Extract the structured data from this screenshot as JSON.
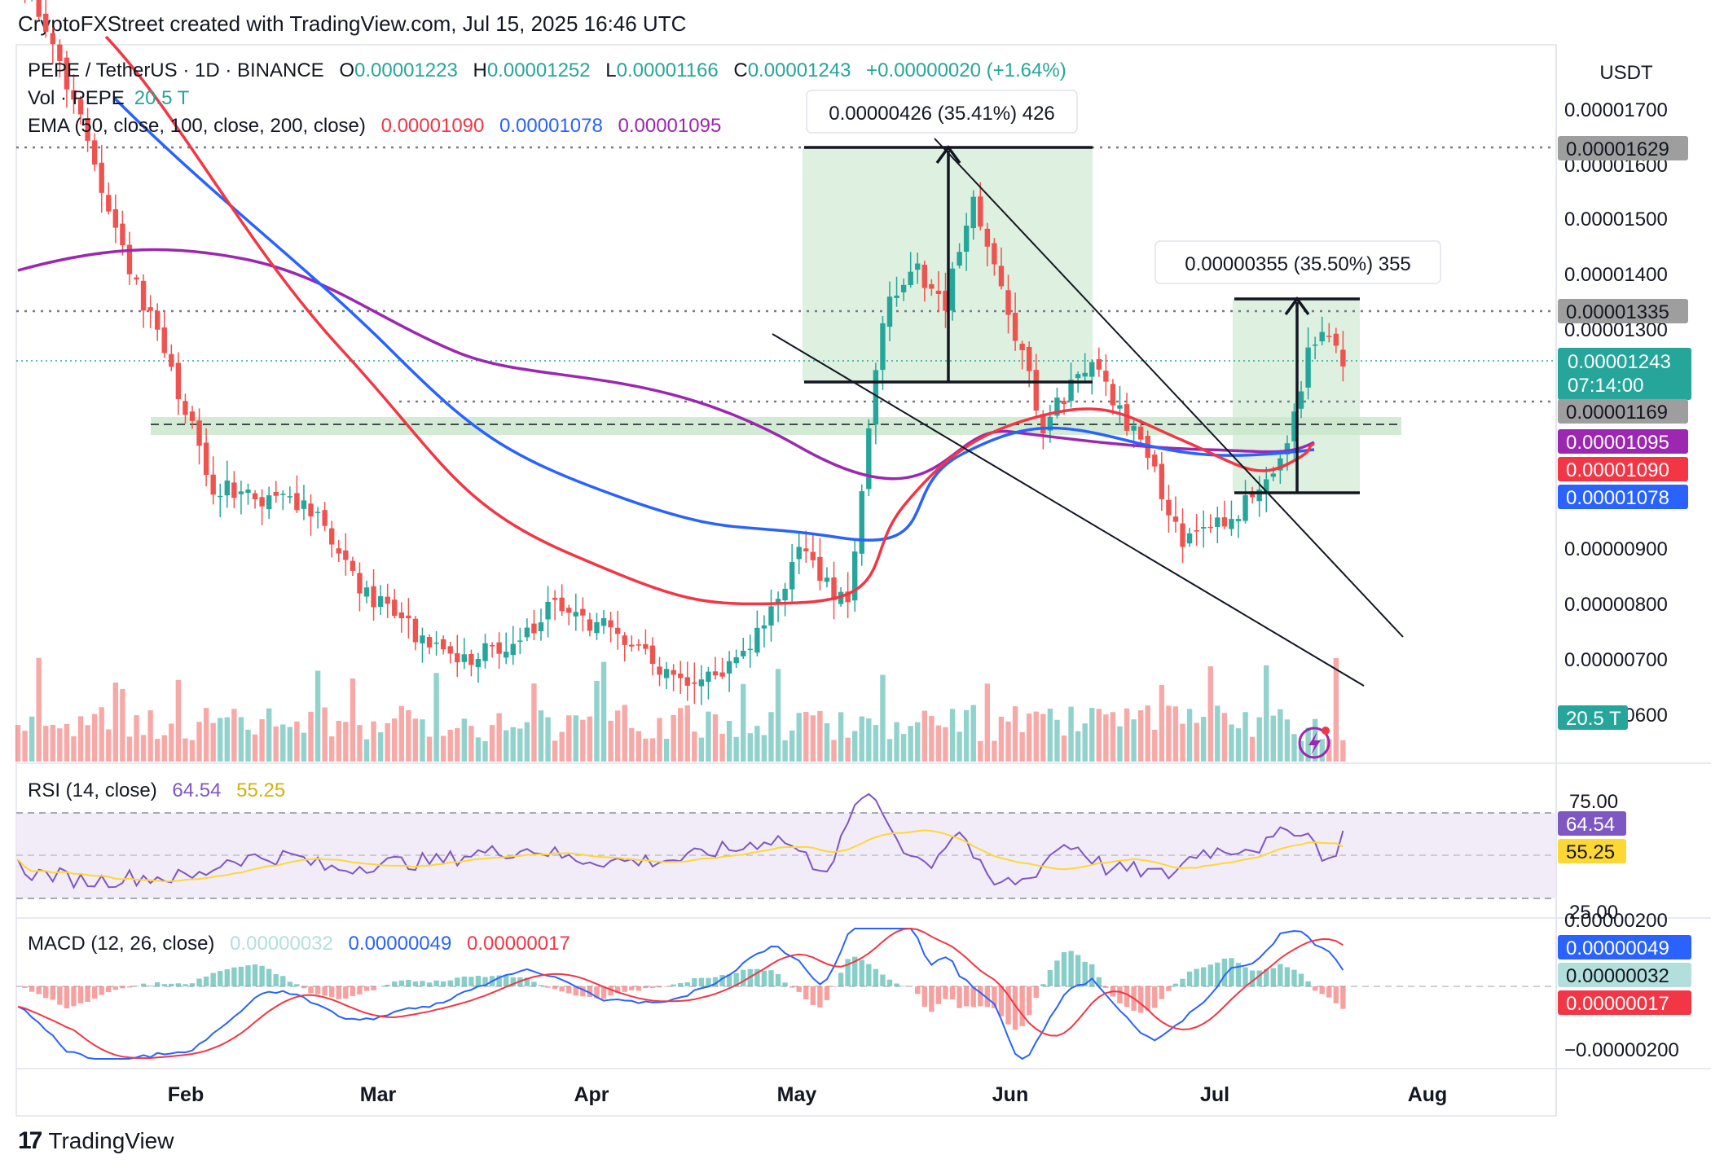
{
  "header": {
    "attribution": "CryptoFXStreet created with TradingView.com, Jul 15, 2025 16:46 UTC"
  },
  "legend": {
    "symbol": "PEPE / TetherUS · 1D · BINANCE",
    "o_label": "O",
    "o_value": "0.00001223",
    "h_label": "H",
    "h_value": "0.00001252",
    "l_label": "L",
    "l_value": "0.00001166",
    "c_label": "C",
    "c_value": "0.00001243",
    "change": "+0.00000020 (+1.64%)",
    "vol_label": "Vol · PEPE",
    "vol_value": "20.5 T",
    "ema_label": "EMA (50, close, 100, close, 200, close)",
    "ema50": "0.00001090",
    "ema100": "0.00001078",
    "ema200": "0.00001095"
  },
  "axis": {
    "currency": "USDT",
    "price_ticks": [
      "0.00001700",
      "0.00001600",
      "0.00001500",
      "0.00001400",
      "0.00001300",
      "0.00000900",
      "0.00000800",
      "0.00000700",
      "0.00000600"
    ],
    "months": [
      "Feb",
      "Mar",
      "Apr",
      "May",
      "Jun",
      "Jul",
      "Aug"
    ]
  },
  "price_badges": {
    "level_top": "0.00001629",
    "level_mid": "0.00001335",
    "last_price": "0.00001243",
    "countdown": "07:14:00",
    "level_low": "0.00001169",
    "ema200": "0.00001095",
    "ema50": "0.00001090",
    "ema100": "0.00001078",
    "volume": "20.5 T"
  },
  "measurements": {
    "first": "0.00000426 (35.41%) 426",
    "second": "0.00000355 (35.50%) 355"
  },
  "rsi": {
    "label": "RSI (14, close)",
    "value": "64.54",
    "ma_value": "55.25",
    "upper": "75.00",
    "lower": "25.00"
  },
  "macd": {
    "label": "MACD (12, 26, close)",
    "hist": "0.00000032",
    "macd": "0.00000049",
    "signal": "0.00000017",
    "tick_top": "0.00000200",
    "tick_bottom": "−0.00000200"
  },
  "footer": {
    "brand": "TradingView",
    "brand_mark": "17"
  },
  "colors": {
    "up": "#26a69a",
    "down": "#ef5350",
    "ema50": "#f23645",
    "ema100": "#2962ff",
    "ema200": "#9c27b0",
    "rsi": "#7e57c2",
    "rsi_ma": "#fdd835",
    "zone": "#c8e6c9"
  },
  "chart_data": {
    "type": "candlestick",
    "timeframe": "1D",
    "symbol": "PEPE/USDT",
    "x_range": [
      "2025-01-06",
      "2025-07-15"
    ],
    "y_range": [
      5.5e-06,
      1.78e-05
    ],
    "close_path": [
      [
        "2025-01-06",
        1.95e-05
      ],
      [
        "2025-01-13",
        1.75e-05
      ],
      [
        "2025-01-20",
        1.48e-05
      ],
      [
        "2025-01-27",
        1.25e-05
      ],
      [
        "2025-02-03",
        1.02e-05
      ],
      [
        "2025-02-10",
        9.9e-06
      ],
      [
        "2025-02-17",
        9.8e-06
      ],
      [
        "2025-02-24",
        8.4e-06
      ],
      [
        "2025-03-03",
        7.6e-06
      ],
      [
        "2025-03-10",
        7e-06
      ],
      [
        "2025-03-17",
        7.3e-06
      ],
      [
        "2025-03-24",
        8e-06
      ],
      [
        "2025-03-31",
        7.6e-06
      ],
      [
        "2025-04-07",
        7e-06
      ],
      [
        "2025-04-14",
        6.6e-06
      ],
      [
        "2025-04-21",
        7.2e-06
      ],
      [
        "2025-04-28",
        9e-06
      ],
      [
        "2025-05-05",
        8e-06
      ],
      [
        "2025-05-10",
        1.32e-05
      ],
      [
        "2025-05-14",
        1.42e-05
      ],
      [
        "2025-05-19",
        1.35e-05
      ],
      [
        "2025-05-23",
        1.55e-05
      ],
      [
        "2025-05-27",
        1.36e-05
      ],
      [
        "2025-06-02",
        1.13e-05
      ],
      [
        "2025-06-09",
        1.24e-05
      ],
      [
        "2025-06-14",
        1.13e-05
      ],
      [
        "2025-06-18",
        1.04e-05
      ],
      [
        "2025-06-22",
        9.1e-06
      ],
      [
        "2025-06-29",
        9.6e-06
      ],
      [
        "2025-07-06",
        1.06e-05
      ],
      [
        "2025-07-10",
        1.25e-05
      ],
      [
        "2025-07-12",
        1.29e-05
      ],
      [
        "2025-07-15",
        1.243e-05
      ]
    ],
    "horizontal_levels": [
      1.629e-05,
      1.335e-05,
      1.169e-05
    ],
    "support_zone": [
      1.1e-05,
      1.2e-05
    ],
    "ema": {
      "ema50": 1.09e-05,
      "ema100": 1.078e-05,
      "ema200": 1.095e-05
    },
    "measured_moves": [
      {
        "label": "0.00000426 (35.41%) 426",
        "from": 1.2e-05,
        "to": 1.629e-05
      },
      {
        "label": "0.00000355 (35.50%) 355",
        "from": 1e-05,
        "to": 1.355e-05
      }
    ],
    "rsi": {
      "value": 64.54,
      "ma": 55.25,
      "bounds": [
        25,
        75
      ]
    },
    "macd": {
      "macd": 4.9e-07,
      "signal": 1.7e-07,
      "histogram": 3.2e-07
    }
  }
}
